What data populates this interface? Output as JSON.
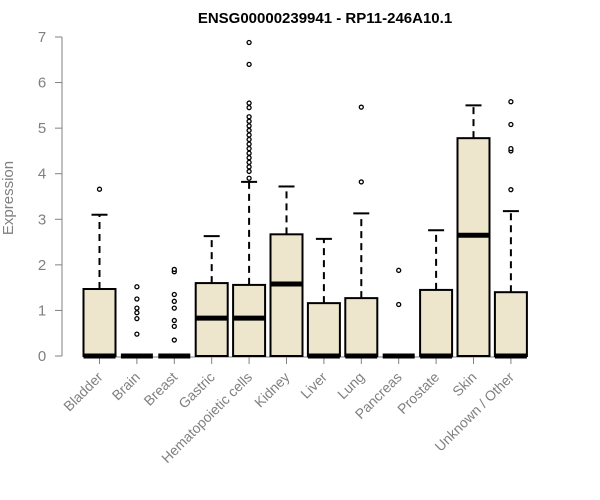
{
  "chart_data": {
    "type": "boxplot",
    "title": "ENSG00000239941 - RP11-246A10.1",
    "xlabel": "",
    "ylabel": "Expression",
    "ylim": [
      0,
      7
    ],
    "yticks": [
      "0",
      "1",
      "2",
      "3",
      "4",
      "5",
      "6",
      "7"
    ],
    "categories": [
      "Bladder",
      "Brain",
      "Breast",
      "Gastric",
      "Hematopoietic cells",
      "Kidney",
      "Liver",
      "Lung",
      "Pancreas",
      "Prostate",
      "Skin",
      "Unknown / Other"
    ],
    "series": [
      {
        "name": "Bladder",
        "min": 0,
        "q1": 0,
        "median": 0,
        "q3": 1.47,
        "max": 3.1,
        "outliers": [
          3.66
        ]
      },
      {
        "name": "Brain",
        "min": 0,
        "q1": 0,
        "median": 0,
        "q3": 0,
        "max": 0,
        "outliers": [
          0.48,
          0.82,
          0.95,
          1.05,
          1.25,
          1.52
        ]
      },
      {
        "name": "Breast",
        "min": 0,
        "q1": 0,
        "median": 0,
        "q3": 0,
        "max": 0,
        "outliers": [
          0.35,
          0.65,
          0.78,
          1.05,
          1.2,
          1.35,
          1.85,
          1.9
        ]
      },
      {
        "name": "Gastric",
        "min": 0,
        "q1": 0,
        "median": 0.83,
        "q3": 1.6,
        "max": 2.63,
        "outliers": []
      },
      {
        "name": "Hematopoietic cells",
        "min": 0,
        "q1": 0,
        "median": 0.83,
        "q3": 1.56,
        "max": 3.82,
        "outliers": [
          3.9,
          4.05,
          4.15,
          4.25,
          4.35,
          4.45,
          4.55,
          4.65,
          4.75,
          4.85,
          4.95,
          5.05,
          5.15,
          5.25,
          5.45,
          5.55,
          6.4,
          6.88
        ]
      },
      {
        "name": "Kidney",
        "min": 0,
        "q1": 0,
        "median": 1.58,
        "q3": 2.67,
        "max": 3.72,
        "outliers": []
      },
      {
        "name": "Liver",
        "min": 0,
        "q1": 0,
        "median": 0,
        "q3": 1.16,
        "max": 2.57,
        "outliers": []
      },
      {
        "name": "Lung",
        "min": 0,
        "q1": 0,
        "median": 0,
        "q3": 1.27,
        "max": 3.13,
        "outliers": [
          3.82,
          5.46
        ]
      },
      {
        "name": "Pancreas",
        "min": 0,
        "q1": 0,
        "median": 0,
        "q3": 0,
        "max": 0,
        "outliers": [
          1.13,
          1.88
        ]
      },
      {
        "name": "Prostate",
        "min": 0,
        "q1": 0,
        "median": 0,
        "q3": 1.45,
        "max": 2.76,
        "outliers": []
      },
      {
        "name": "Skin",
        "min": 0,
        "q1": 0,
        "median": 2.65,
        "q3": 4.78,
        "max": 5.5,
        "outliers": []
      },
      {
        "name": "Unknown / Other",
        "min": 0,
        "q1": 0,
        "median": 0,
        "q3": 1.4,
        "max": 3.18,
        "outliers": [
          3.65,
          4.5,
          4.55,
          5.08,
          5.58
        ]
      }
    ],
    "colors": {
      "box_fill": "#ede6cd",
      "stroke": "#000000",
      "axis": "#808080",
      "tick_text": "#808080",
      "title": "#000000"
    }
  }
}
